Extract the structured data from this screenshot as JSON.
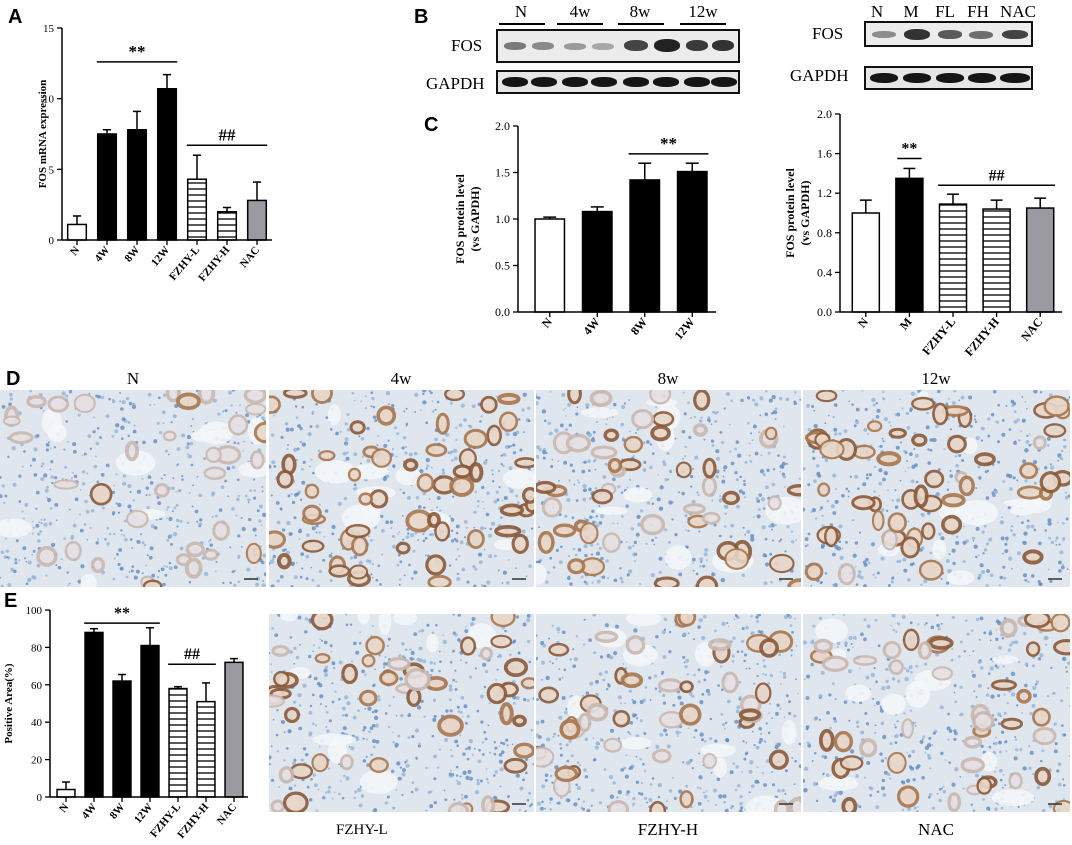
{
  "panel_labels": {
    "A": "A",
    "B": "B",
    "C": "C",
    "D": "D",
    "E": "E"
  },
  "blot_left": {
    "lanes": [
      "N",
      "4w",
      "8w",
      "12w"
    ],
    "protein1": "FOS",
    "protein2": "GAPDH"
  },
  "blot_right": {
    "lanes": [
      "N",
      "M",
      "FL",
      "FH",
      "NAC"
    ],
    "protein1": "FOS",
    "protein2": "GAPDH"
  },
  "ihc": {
    "top_titles": [
      "N",
      "4w",
      "8w",
      "12w"
    ],
    "bottom_titles": [
      "FZHY-L",
      "FZHY-H",
      "NAC"
    ]
  },
  "chart_data": [
    {
      "panel": "A",
      "type": "bar",
      "ylabel": "FOS mRNA expression",
      "ylim": [
        0,
        15
      ],
      "yticks": [
        "0",
        "5",
        "10",
        "15"
      ],
      "categories": [
        "N",
        "4W",
        "8W",
        "12W",
        "FZHY-L",
        "FZHY-H",
        "NAC"
      ],
      "values": [
        1.1,
        7.5,
        7.8,
        10.7,
        4.3,
        2.0,
        2.8
      ],
      "errors": [
        0.6,
        0.3,
        1.3,
        1.0,
        1.7,
        0.3,
        1.3
      ],
      "fills": [
        "white",
        "black",
        "black",
        "black",
        "hlines",
        "hlines",
        "gray"
      ],
      "annotations": [
        {
          "text": "**",
          "from": 1,
          "to": 3,
          "y": 12.6
        },
        {
          "text": "##",
          "from": 4,
          "to": 6,
          "y": 6.7
        }
      ]
    },
    {
      "panel": "C-left",
      "type": "bar",
      "ylabel": "FOS protein level (vs GAPDH)",
      "ylim": [
        0,
        2.0
      ],
      "yticks": [
        "0.0",
        "0.5",
        "1.0",
        "1.5",
        "2.0"
      ],
      "categories": [
        "N",
        "4W",
        "8W",
        "12W"
      ],
      "values": [
        1.0,
        1.08,
        1.42,
        1.51
      ],
      "errors": [
        0.02,
        0.05,
        0.18,
        0.09
      ],
      "fills": [
        "white",
        "black",
        "black",
        "black"
      ],
      "annotations": [
        {
          "text": "**",
          "from": 2,
          "to": 3,
          "y": 1.7
        }
      ]
    },
    {
      "panel": "C-right",
      "type": "bar",
      "ylabel": "FOS protein level (vs GAPDH)",
      "ylim": [
        0,
        2.0
      ],
      "yticks": [
        "0.0",
        "0.4",
        "0.8",
        "1.2",
        "1.6",
        "2.0"
      ],
      "categories": [
        "N",
        "M",
        "FZHY-L",
        "FZHY-H",
        "NAC"
      ],
      "values": [
        1.0,
        1.35,
        1.09,
        1.04,
        1.05
      ],
      "errors": [
        0.13,
        0.1,
        0.1,
        0.09,
        0.1
      ],
      "fills": [
        "white",
        "black",
        "hlines",
        "hlines",
        "gray"
      ],
      "annotations": [
        {
          "text": "**",
          "from": 1,
          "to": 1,
          "y": 1.55
        },
        {
          "text": "##",
          "from": 2,
          "to": 4,
          "y": 1.28
        }
      ]
    },
    {
      "panel": "E",
      "type": "bar",
      "ylabel": "Positive Area(%)",
      "ylim": [
        0,
        100
      ],
      "yticks": [
        "0",
        "20",
        "40",
        "60",
        "80",
        "100"
      ],
      "categories": [
        "N",
        "4W",
        "8W",
        "12W",
        "FZHY-L",
        "FZHY-H",
        "NAC"
      ],
      "values": [
        4,
        88,
        62,
        81,
        58,
        51,
        72
      ],
      "errors": [
        4,
        2,
        3.5,
        9.5,
        1,
        10,
        2
      ],
      "fills": [
        "white",
        "black",
        "black",
        "black",
        "hlines",
        "hlines",
        "gray"
      ],
      "annotations": [
        {
          "text": "**",
          "from": 1,
          "to": 3,
          "y": 93
        },
        {
          "text": "##",
          "from": 4,
          "to": 5,
          "y": 71
        }
      ]
    }
  ]
}
